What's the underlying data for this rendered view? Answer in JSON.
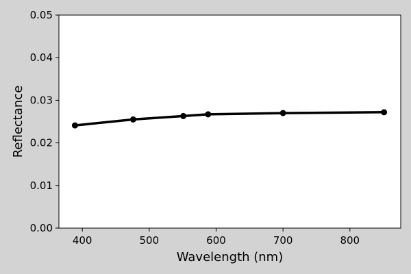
{
  "chart_data": {
    "type": "line",
    "xlabel": "Wavelength (nm)",
    "ylabel": "Reflectance",
    "xlim": [
      365,
      876
    ],
    "ylim": [
      0,
      0.05
    ],
    "xticks": [
      400,
      500,
      600,
      700,
      800
    ],
    "xtick_labels": [
      "400",
      "500",
      "600",
      "700",
      "800"
    ],
    "yticks": [
      0,
      0.01,
      0.02,
      0.03,
      0.04,
      0.05
    ],
    "ytick_labels": [
      "0.00",
      "0.01",
      "0.02",
      "0.03",
      "0.04",
      "0.05"
    ],
    "grid": false,
    "series": [
      {
        "x": [
          389,
          476,
          551,
          588,
          700,
          851
        ],
        "y": [
          0.0241,
          0.0255,
          0.0263,
          0.0267,
          0.027,
          0.0272
        ],
        "color": "#000000",
        "marker": "circle"
      }
    ]
  },
  "colors": {
    "background": "#d3d3d3",
    "plot_area": "#ffffff",
    "line": "#000000"
  }
}
